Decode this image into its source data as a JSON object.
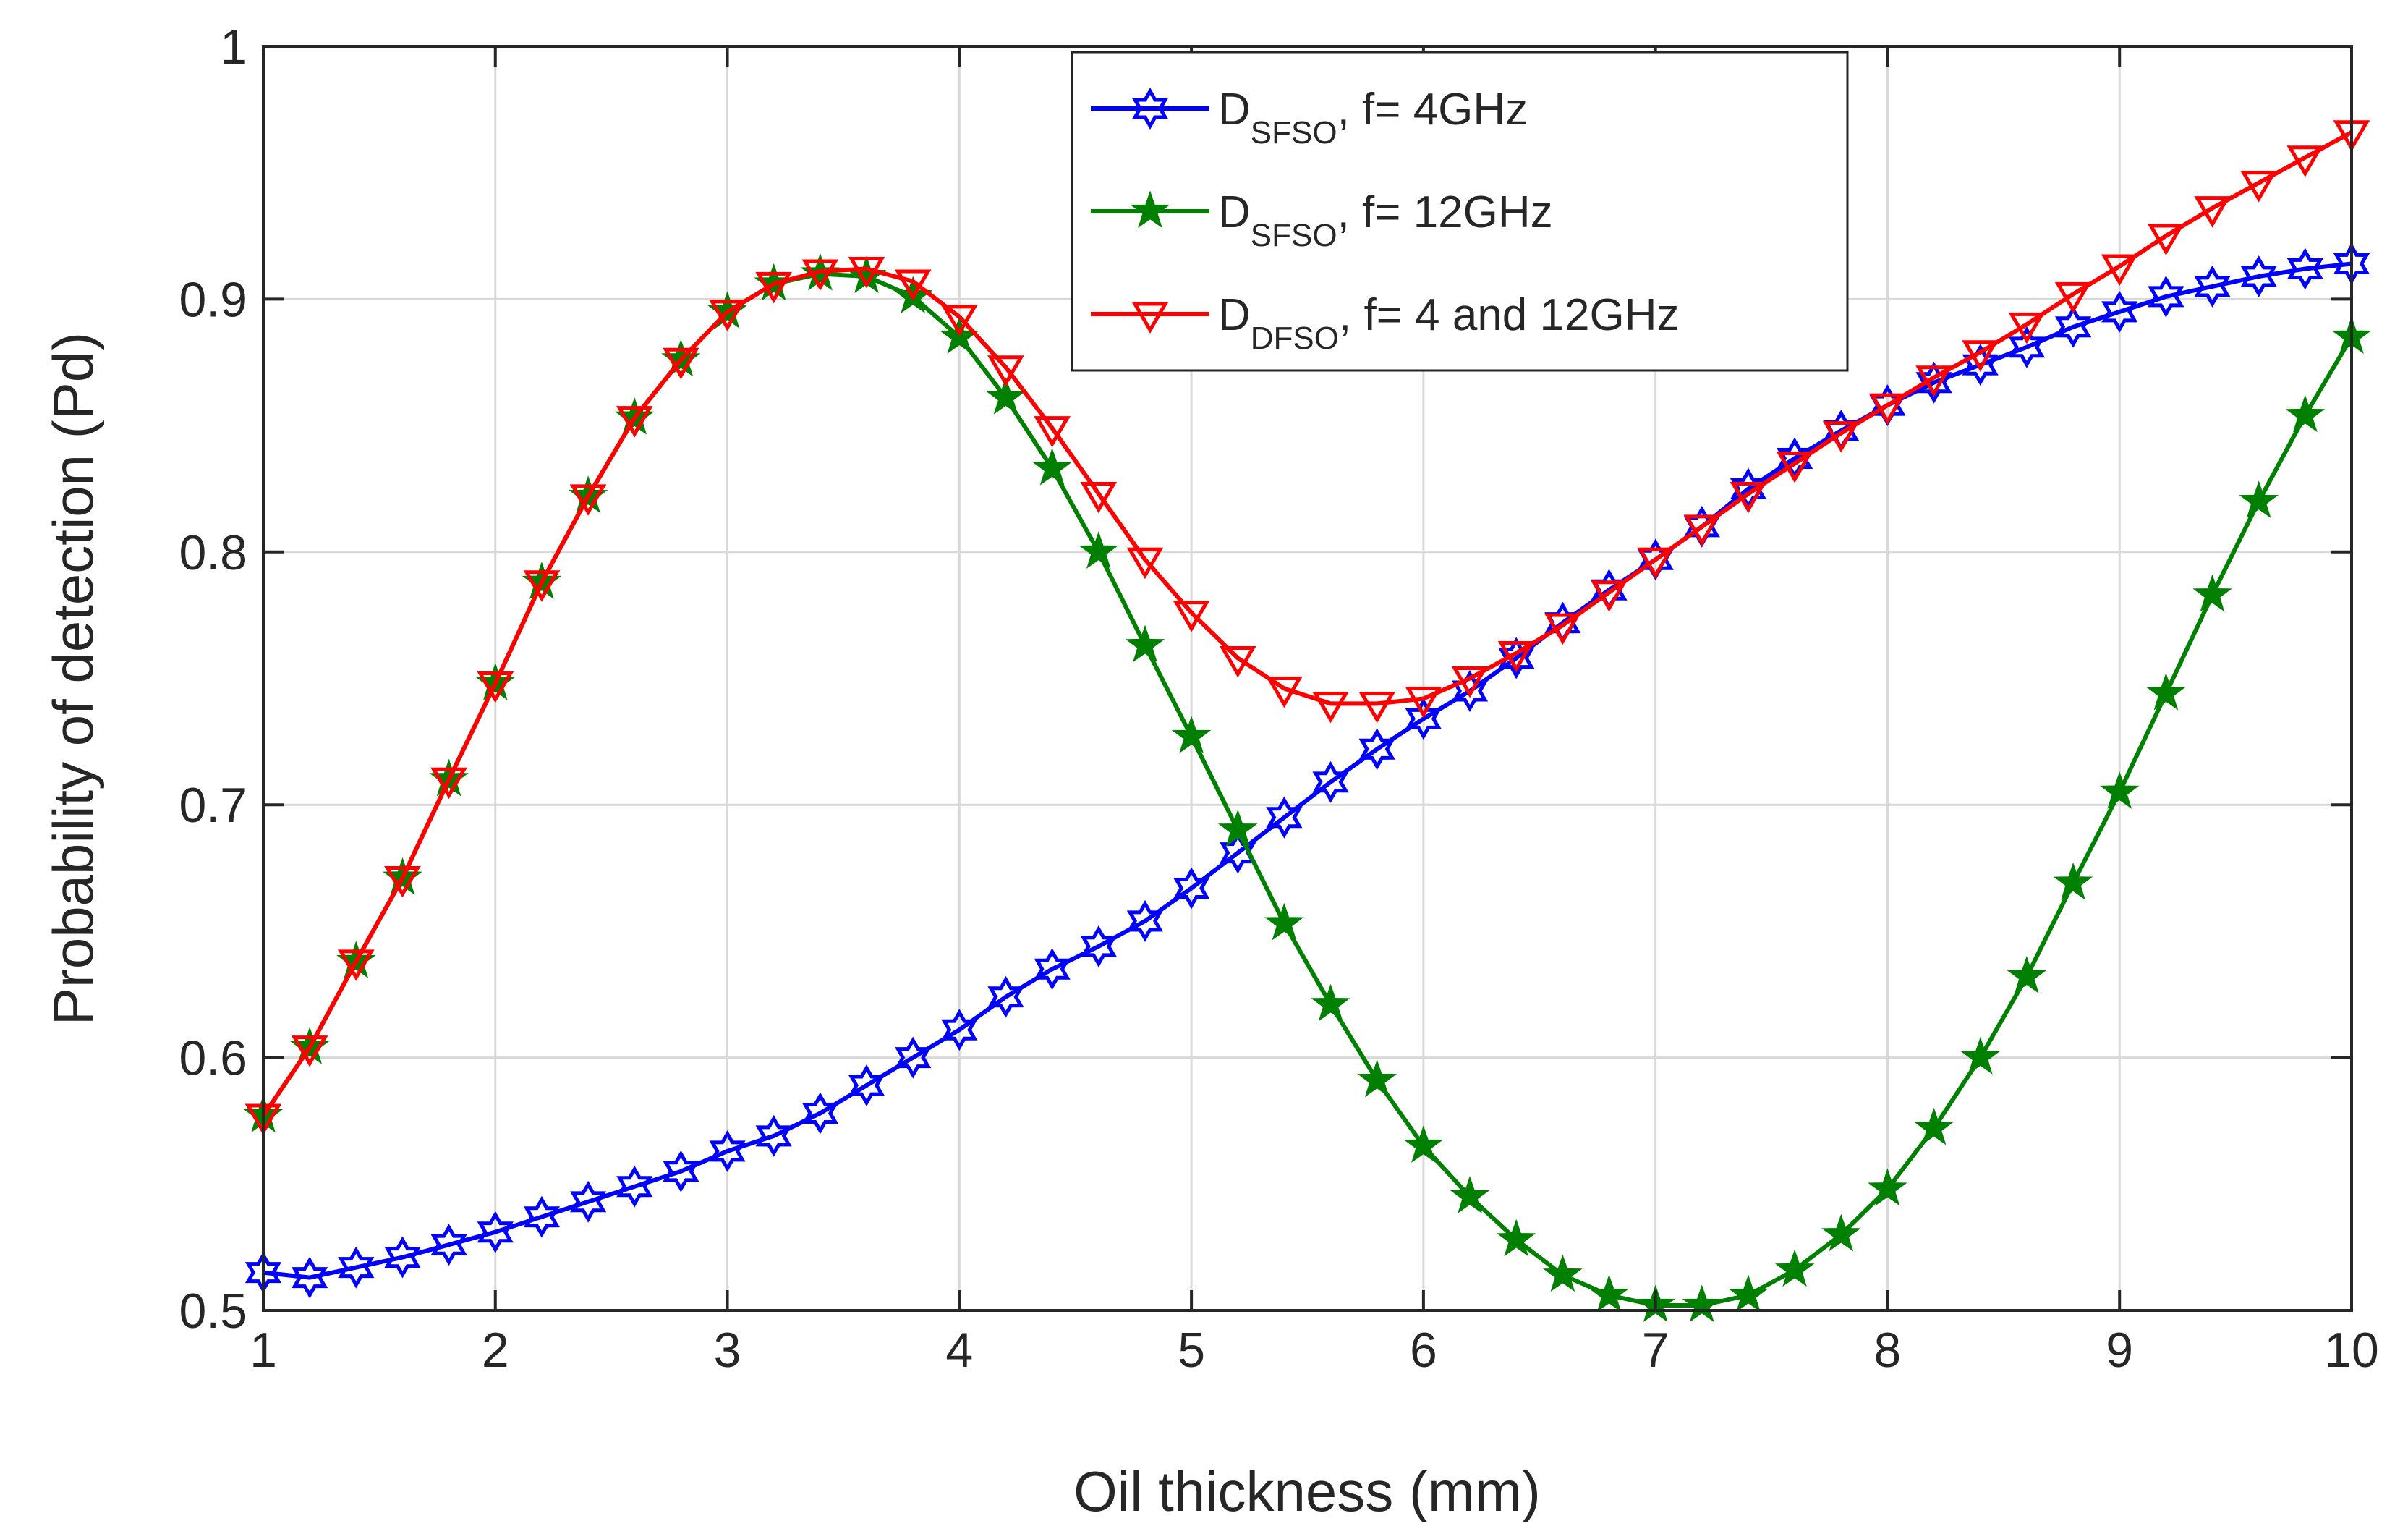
{
  "chart_data": {
    "type": "line",
    "title": "",
    "xlabel": "Oil thickness (mm)",
    "ylabel": "Probability of detection (Pd)",
    "xlim": [
      1,
      10
    ],
    "ylim": [
      0.5,
      1
    ],
    "grid": true,
    "legend_position": "top-center",
    "xticks": [
      "1",
      "2",
      "3",
      "4",
      "5",
      "6",
      "7",
      "8",
      "9",
      "10"
    ],
    "yticks": [
      "0.5",
      "0.6",
      "0.7",
      "0.8",
      "0.9",
      "1"
    ],
    "x": [
      1.0,
      1.2,
      1.4,
      1.6,
      1.8,
      2.0,
      2.2,
      2.4,
      2.6,
      2.8,
      3.0,
      3.2,
      3.4,
      3.6,
      3.8,
      4.0,
      4.2,
      4.4,
      4.6,
      4.8,
      5.0,
      5.2,
      5.4,
      5.6,
      5.8,
      6.0,
      6.2,
      6.4,
      6.6,
      6.8,
      7.0,
      7.2,
      7.4,
      7.6,
      7.8,
      8.0,
      8.2,
      8.4,
      8.6,
      8.8,
      9.0,
      9.2,
      9.4,
      9.6,
      9.8,
      10.0
    ],
    "series": [
      {
        "name": "D_SFSO, f= 4GHz",
        "legend_main": "D",
        "legend_sub": "SFSO",
        "legend_rest": ", f= 4GHz",
        "color": "#0000ff",
        "marker": "hexagram-open",
        "values": [
          0.515,
          0.513,
          0.517,
          0.521,
          0.526,
          0.531,
          0.537,
          0.543,
          0.549,
          0.555,
          0.563,
          0.569,
          0.578,
          0.589,
          0.6,
          0.611,
          0.624,
          0.635,
          0.644,
          0.654,
          0.667,
          0.681,
          0.695,
          0.709,
          0.722,
          0.734,
          0.745,
          0.758,
          0.772,
          0.785,
          0.797,
          0.81,
          0.825,
          0.837,
          0.848,
          0.858,
          0.867,
          0.874,
          0.881,
          0.889,
          0.895,
          0.901,
          0.905,
          0.909,
          0.912,
          0.914
        ]
      },
      {
        "name": "D_SFSO, f= 12GHz",
        "legend_main": "D",
        "legend_sub": "SFSO",
        "legend_rest": ", f= 12GHz",
        "color": "#008000",
        "marker": "star-filled",
        "values": [
          0.577,
          0.604,
          0.638,
          0.671,
          0.71,
          0.748,
          0.788,
          0.822,
          0.853,
          0.876,
          0.895,
          0.906,
          0.91,
          0.909,
          0.901,
          0.885,
          0.861,
          0.833,
          0.8,
          0.763,
          0.727,
          0.69,
          0.653,
          0.621,
          0.591,
          0.565,
          0.545,
          0.528,
          0.514,
          0.506,
          0.502,
          0.502,
          0.506,
          0.516,
          0.53,
          0.548,
          0.572,
          0.6,
          0.632,
          0.669,
          0.705,
          0.744,
          0.783,
          0.82,
          0.854,
          0.885
        ]
      },
      {
        "name": "D_DFSO, f= 4 and 12GHz",
        "legend_main": "D",
        "legend_sub": "DFSO",
        "legend_rest": ", f= 4 and 12GHz",
        "color": "#ff0000",
        "marker": "triangle-down-open",
        "values": [
          0.577,
          0.604,
          0.638,
          0.671,
          0.71,
          0.748,
          0.788,
          0.822,
          0.853,
          0.876,
          0.895,
          0.906,
          0.911,
          0.912,
          0.907,
          0.893,
          0.873,
          0.849,
          0.823,
          0.797,
          0.776,
          0.758,
          0.746,
          0.74,
          0.74,
          0.742,
          0.75,
          0.76,
          0.771,
          0.784,
          0.797,
          0.81,
          0.823,
          0.835,
          0.847,
          0.858,
          0.869,
          0.879,
          0.89,
          0.902,
          0.913,
          0.925,
          0.936,
          0.946,
          0.956,
          0.966
        ]
      }
    ]
  }
}
